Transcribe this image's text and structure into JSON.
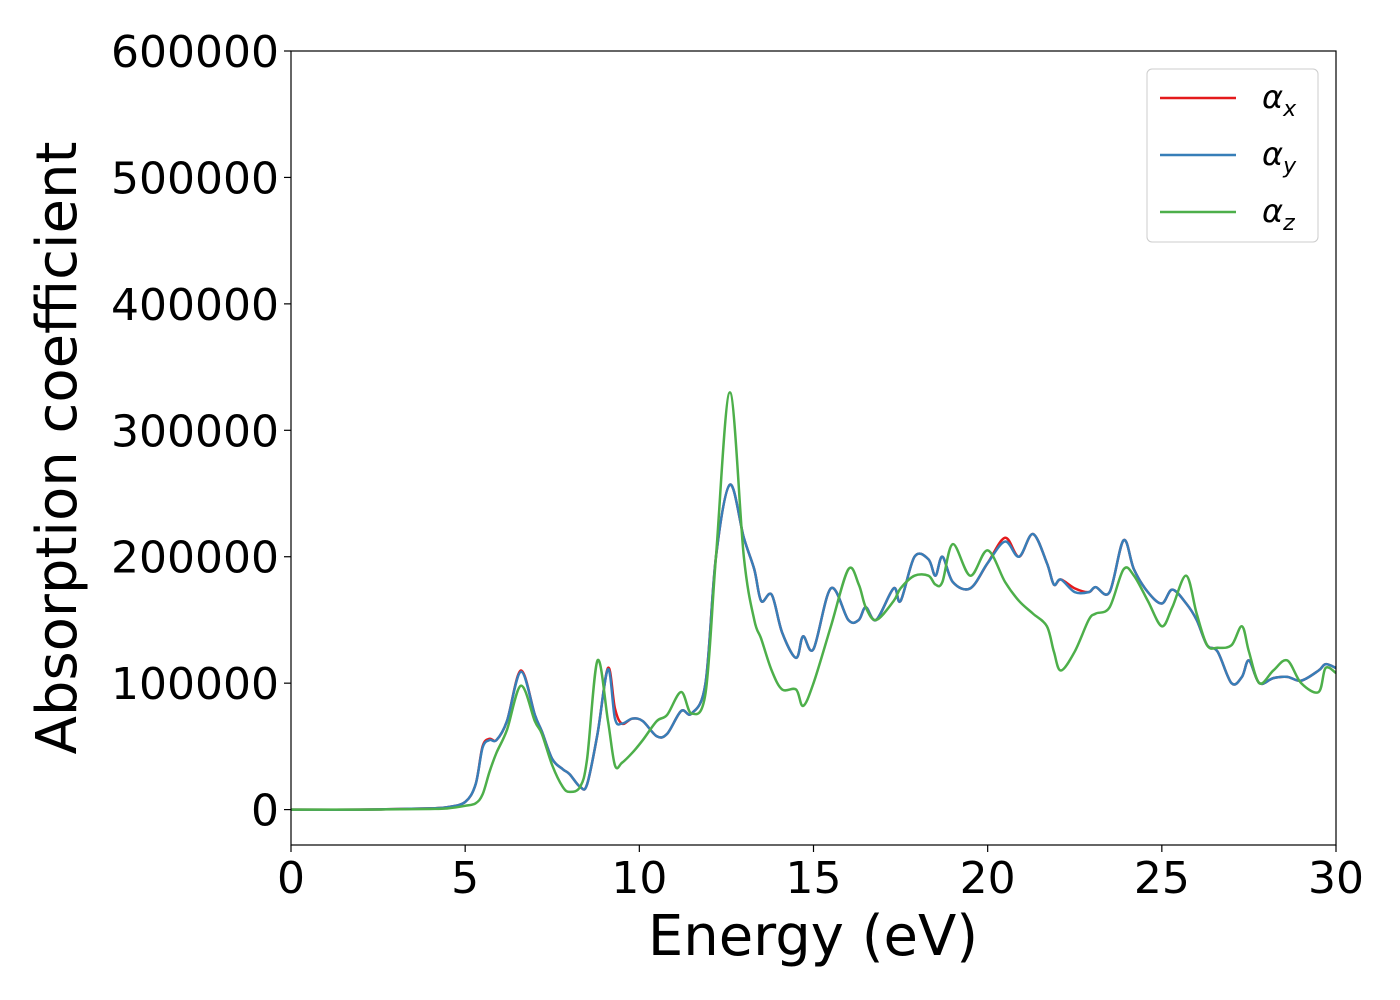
{
  "chart_data": {
    "type": "line",
    "x_label": "Energy (eV)",
    "y_label": "Absorption coefficient",
    "x": [
      0,
      2,
      4,
      4.5,
      5,
      5.3,
      5.5,
      5.7,
      5.9,
      6.2,
      6.6,
      7.0,
      7.2,
      7.5,
      7.8,
      8.0,
      8.3,
      8.5,
      8.8,
      9.1,
      9.3,
      9.5,
      9.8,
      10.1,
      10.5,
      10.8,
      11.2,
      11.5,
      11.9,
      12.2,
      12.6,
      13.0,
      13.3,
      13.5,
      13.8,
      14.1,
      14.5,
      14.7,
      15.0,
      15.5,
      16.0,
      16.3,
      16.5,
      16.8,
      17.3,
      17.5,
      17.9,
      18.3,
      18.5,
      18.7,
      19.0,
      19.5,
      20.0,
      20.5,
      20.9,
      21.3,
      21.7,
      21.9,
      22.1,
      22.5,
      22.9,
      23.1,
      23.5,
      23.9,
      24.2,
      24.6,
      25.0,
      25.3,
      25.7,
      26.0,
      26.3,
      26.6,
      27.0,
      27.3,
      27.5,
      27.8,
      28.2,
      28.6,
      29.0,
      29.5,
      29.7,
      30
    ],
    "series": [
      {
        "name": "αx",
        "color": "#e41a1c",
        "values": [
          0,
          0,
          1000,
          2000,
          6000,
          20000,
          50000,
          56000,
          55000,
          70000,
          110000,
          75000,
          62000,
          40000,
          32000,
          28000,
          18000,
          20000,
          60000,
          112000,
          80000,
          68000,
          72000,
          70000,
          58000,
          60000,
          78000,
          76000,
          100000,
          200000,
          257000,
          215000,
          190000,
          165000,
          170000,
          140000,
          120000,
          137000,
          127000,
          175000,
          150000,
          150000,
          160000,
          150000,
          175000,
          165000,
          200000,
          198000,
          185000,
          200000,
          180000,
          175000,
          195000,
          215000,
          200000,
          218000,
          195000,
          178000,
          182000,
          175000,
          172000,
          176000,
          172000,
          213000,
          190000,
          172000,
          163000,
          174000,
          163000,
          150000,
          130000,
          125000,
          100000,
          105000,
          118000,
          100000,
          104000,
          105000,
          102000,
          110000,
          115000,
          112000
        ]
      },
      {
        "name": "αy",
        "color": "#377eb8",
        "values": [
          0,
          0,
          1000,
          2000,
          6000,
          20000,
          49000,
          55000,
          55000,
          70000,
          109000,
          75000,
          62000,
          40000,
          32000,
          28000,
          18000,
          20000,
          60000,
          111000,
          72000,
          68000,
          72000,
          70000,
          58000,
          60000,
          78000,
          76000,
          100000,
          200000,
          257000,
          215000,
          190000,
          165000,
          170000,
          140000,
          120000,
          137000,
          127000,
          175000,
          150000,
          150000,
          160000,
          150000,
          175000,
          165000,
          200000,
          198000,
          185000,
          200000,
          180000,
          175000,
          195000,
          212000,
          200000,
          218000,
          195000,
          178000,
          182000,
          172000,
          172000,
          176000,
          172000,
          213000,
          190000,
          172000,
          163000,
          174000,
          163000,
          150000,
          130000,
          125000,
          100000,
          105000,
          118000,
          100000,
          104000,
          105000,
          102000,
          110000,
          115000,
          112000
        ]
      },
      {
        "name": "αz",
        "color": "#4daf4a",
        "values": [
          0,
          0,
          500,
          1000,
          3000,
          5000,
          12000,
          30000,
          45000,
          63000,
          98000,
          70000,
          60000,
          35000,
          18000,
          14000,
          18000,
          40000,
          118000,
          70000,
          35000,
          37000,
          45000,
          55000,
          70000,
          75000,
          93000,
          76000,
          92000,
          200000,
          330000,
          200000,
          150000,
          135000,
          110000,
          95000,
          95000,
          82000,
          100000,
          145000,
          190000,
          178000,
          160000,
          150000,
          165000,
          175000,
          185000,
          185000,
          178000,
          180000,
          210000,
          185000,
          205000,
          180000,
          165000,
          155000,
          145000,
          125000,
          110000,
          125000,
          150000,
          155000,
          160000,
          190000,
          185000,
          165000,
          145000,
          160000,
          185000,
          155000,
          130000,
          128000,
          130000,
          145000,
          125000,
          100000,
          110000,
          118000,
          100000,
          93000,
          112000,
          108000
        ]
      }
    ],
    "xlim": [
      0,
      30
    ],
    "ylim": [
      -28000,
      600000
    ],
    "xticks": [
      0,
      5,
      10,
      15,
      20,
      25,
      30
    ],
    "yticks": [
      0,
      100000,
      200000,
      300000,
      400000,
      500000,
      600000
    ],
    "legend": "upper right",
    "grid": false
  }
}
